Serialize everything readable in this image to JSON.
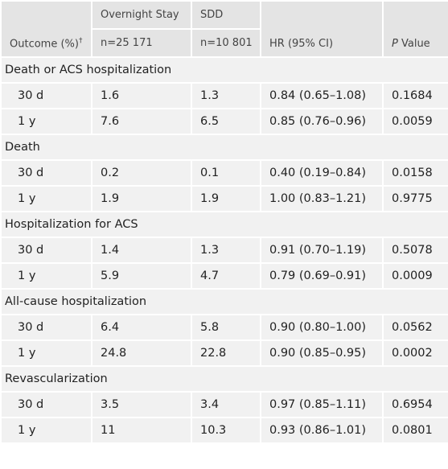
{
  "header": {
    "outcome": "Outcome (%)",
    "dagger": "†",
    "groups": [
      "Overnight Stay",
      "SDD"
    ],
    "counts": [
      "n=25 171",
      "n=10 801"
    ],
    "hr": "HR (95% CI)",
    "p_italic": "P",
    "p_rest": " Value"
  },
  "sections": [
    {
      "title": "Death or ACS hospitalization",
      "rows": [
        [
          "30 d",
          "1.6",
          "1.3",
          "0.84 (0.65–1.08)",
          "0.1684"
        ],
        [
          "1 y",
          "7.6",
          "6.5",
          "0.85 (0.76–0.96)",
          "0.0059"
        ]
      ]
    },
    {
      "title": "Death",
      "rows": [
        [
          "30 d",
          "0.2",
          "0.1",
          "0.40 (0.19–0.84)",
          "0.0158"
        ],
        [
          "1 y",
          "1.9",
          "1.9",
          "1.00 (0.83–1.21)",
          "0.9775"
        ]
      ]
    },
    {
      "title": "Hospitalization for ACS",
      "rows": [
        [
          "30 d",
          "1.4",
          "1.3",
          "0.91 (0.70–1.19)",
          "0.5078"
        ],
        [
          "1 y",
          "5.9",
          "4.7",
          "0.79 (0.69–0.91)",
          "0.0009"
        ]
      ]
    },
    {
      "title": "All-cause hospitalization",
      "rows": [
        [
          "30 d",
          "6.4",
          "5.8",
          "0.90 (0.80–1.00)",
          "0.0562"
        ],
        [
          "1 y",
          "24.8",
          "22.8",
          "0.90 (0.85–0.95)",
          "0.0002"
        ]
      ]
    },
    {
      "title": "Revascularization",
      "rows": [
        [
          "30 d",
          "3.5",
          "3.4",
          "0.97 (0.85–1.11)",
          "0.6954"
        ],
        [
          "1 y",
          "11",
          "10.3",
          "0.93 (0.86–1.01)",
          "0.0801"
        ]
      ]
    }
  ]
}
